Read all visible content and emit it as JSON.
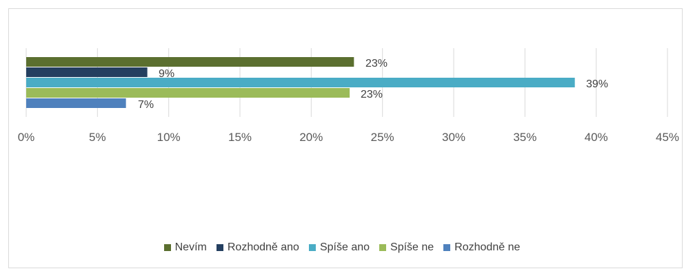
{
  "chart_data": {
    "type": "bar",
    "orientation": "horizontal",
    "categories": [
      "Nevím",
      "Rozhodně ano",
      "Spíše ano",
      "Spíše ne",
      "Rozhodně ne"
    ],
    "values": [
      23,
      9,
      39,
      23,
      7
    ],
    "value_labels": [
      "23%",
      "9%",
      "39%",
      "23%",
      "7%"
    ],
    "bar_lengths_percent": [
      23.0,
      8.5,
      38.5,
      22.7,
      7.0
    ],
    "colors": [
      "#5b6f2f",
      "#243f60",
      "#4aacc5",
      "#9bbb59",
      "#4f81bd"
    ],
    "xlim": [
      0,
      45
    ],
    "x_ticks": [
      "0%",
      "5%",
      "10%",
      "15%",
      "20%",
      "25%",
      "30%",
      "35%",
      "40%",
      "45%"
    ],
    "grid": true,
    "legend_position": "bottom",
    "title": "",
    "xlabel": "",
    "ylabel": ""
  }
}
